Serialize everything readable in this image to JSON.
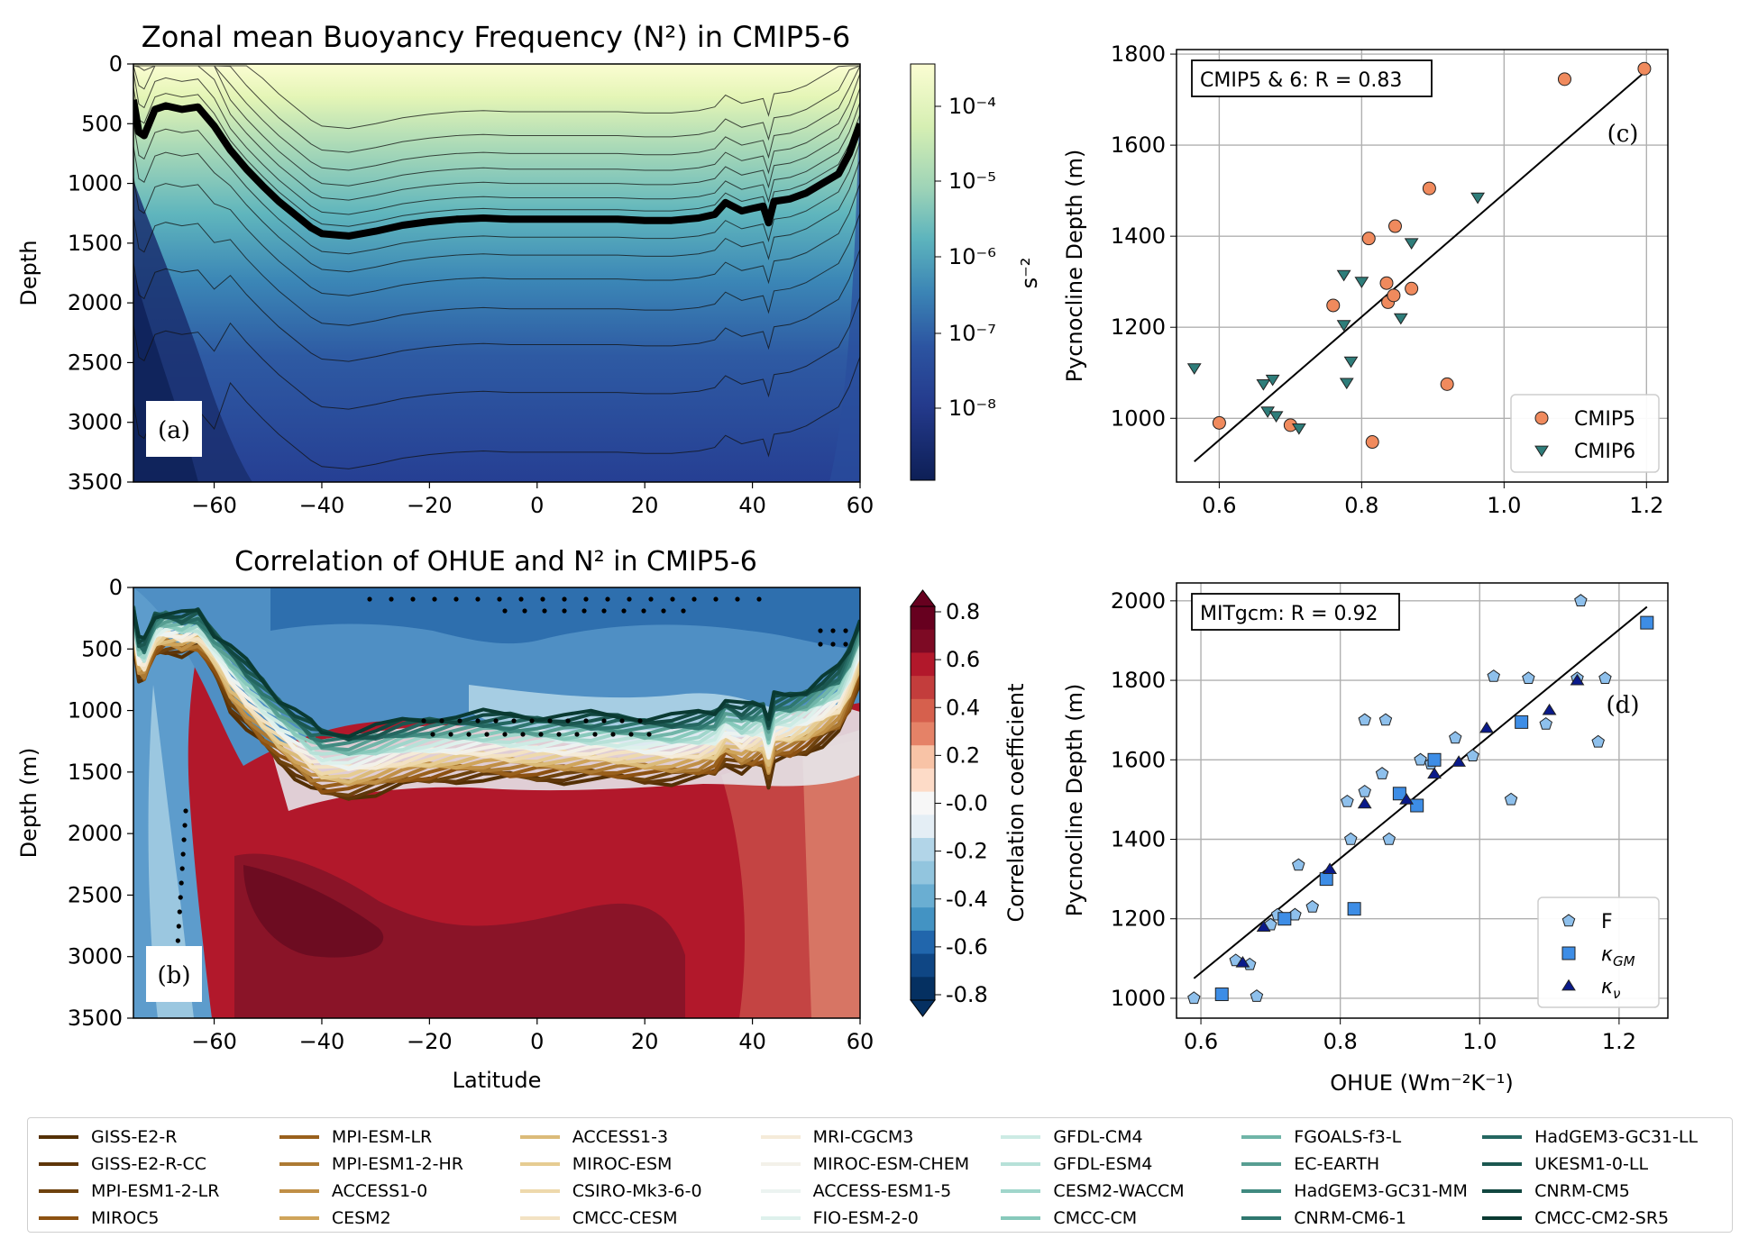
{
  "panel_a": {
    "title": "Zonal mean Buoyancy Frequency (N²) in CMIP5-6",
    "ylabel": "Depth",
    "panel_label": "(a)",
    "colorbar_unit": "s⁻²",
    "colorbar_ticks": [
      "10⁻⁴",
      "10⁻⁵",
      "10⁻⁶",
      "10⁻⁷",
      "10⁻⁸"
    ],
    "colors": [
      "#0d1f56",
      "#243a8c",
      "#2c54a1",
      "#3b84b5",
      "#5db4bd",
      "#9dd3b7",
      "#d6efb3",
      "#fbfdd2"
    ]
  },
  "panel_b": {
    "title": "Correlation of OHUE and N² in CMIP5-6",
    "ylabel": "Depth (m)",
    "xlabel": "Latitude",
    "panel_label": "(b)",
    "colorbar_label": "Correlation coefficient",
    "colorbar_ticks": [
      "0.8",
      "0.6",
      "0.4",
      "0.2",
      "-0.0",
      "-0.2",
      "-0.4",
      "-0.6",
      "-0.8"
    ],
    "colors": [
      "#67001f",
      "#b2182b",
      "#d6604d",
      "#f4a582",
      "#fddbc7",
      "#f7f7f7",
      "#d1e5f0",
      "#92c5de",
      "#4393c3",
      "#2166ac",
      "#053061"
    ]
  },
  "panel_c": {
    "panel_label": "(c)",
    "annotation": "CMIP5 & 6: R = 0.83",
    "ylabel": "Pycnocline Depth (m)"
  },
  "panel_d": {
    "panel_label": "(d)",
    "annotation": "MITgcm: R = 0.92",
    "ylabel": "Pycnocline Depth (m)",
    "xlabel": "OHUE (Wm⁻²K⁻¹)"
  },
  "chart_data": [
    {
      "type": "heatmap",
      "title": "Zonal mean Buoyancy Frequency (N²) in CMIP5-6",
      "ylabel": "Depth",
      "x_ticks": [
        -60,
        -40,
        -20,
        0,
        20,
        40,
        60
      ],
      "y_ticks": [
        0,
        500,
        1000,
        1500,
        2000,
        2500,
        3000,
        3500
      ],
      "xlim": [
        -75,
        60
      ],
      "ylim": [
        3500,
        0
      ],
      "colorbar": {
        "scale": "log",
        "unit": "s⁻²",
        "ticks": [
          "10⁻⁴",
          "10⁻⁵",
          "10⁻⁶",
          "10⁻⁷",
          "10⁻⁸"
        ]
      },
      "pycnocline_line": {
        "lat": [
          -75,
          -74,
          -73,
          -71,
          -69,
          -66,
          -63,
          -60,
          -57,
          -54,
          -51,
          -48,
          -45,
          -42,
          -40,
          -35,
          -30,
          -25,
          -20,
          -15,
          -10,
          -5,
          0,
          5,
          10,
          15,
          20,
          25,
          30,
          33,
          35,
          38,
          40,
          42,
          43,
          44,
          47,
          50,
          53,
          56,
          58,
          60
        ],
        "depth": [
          300,
          570,
          600,
          380,
          350,
          380,
          360,
          520,
          720,
          880,
          1020,
          1150,
          1260,
          1370,
          1420,
          1440,
          1400,
          1350,
          1320,
          1300,
          1290,
          1300,
          1300,
          1300,
          1300,
          1300,
          1310,
          1310,
          1290,
          1260,
          1160,
          1230,
          1210,
          1190,
          1330,
          1150,
          1130,
          1080,
          1000,
          920,
          750,
          500
        ]
      }
    },
    {
      "type": "heatmap",
      "title": "Correlation of OHUE and N² in CMIP5-6",
      "xlabel": "Latitude",
      "ylabel": "Depth (m)",
      "x_ticks": [
        -60,
        -40,
        -20,
        0,
        20,
        40,
        60
      ],
      "y_ticks": [
        0,
        500,
        1000,
        1500,
        2000,
        2500,
        3000,
        3500
      ],
      "xlim": [
        -75,
        60
      ],
      "ylim": [
        3500,
        0
      ],
      "colorbar": {
        "label": "Correlation coefficient",
        "range": [
          -0.8,
          0.8
        ],
        "ticks": [
          0.8,
          0.6,
          0.4,
          0.2,
          -0.0,
          -0.2,
          -0.4,
          -0.6,
          -0.8
        ]
      }
    },
    {
      "type": "scatter",
      "annotation": "CMIP5 & 6: R = 0.83",
      "ylabel": "Pycnocline Depth (m)",
      "xlim": [
        0.54,
        1.23
      ],
      "ylim": [
        860,
        1810
      ],
      "x_ticks": [
        0.6,
        0.8,
        1.0,
        1.2
      ],
      "y_ticks": [
        1000,
        1200,
        1400,
        1600,
        1800
      ],
      "legend": "lower right",
      "series": [
        {
          "name": "CMIP5",
          "marker": "circle",
          "color": "#f08a5d",
          "x": [
            0.6,
            0.7,
            0.76,
            0.81,
            0.815,
            0.835,
            0.837,
            0.845,
            0.847,
            0.87,
            0.895,
            0.92,
            1.085,
            1.197
          ],
          "y": [
            990,
            985,
            1248,
            1395,
            948,
            1297,
            1255,
            1270,
            1422,
            1285,
            1505,
            1075,
            1745,
            1768
          ]
        },
        {
          "name": "CMIP6",
          "marker": "triangle-down",
          "color": "#2e7d7a",
          "x": [
            0.565,
            0.662,
            0.668,
            0.675,
            0.68,
            0.712,
            0.775,
            0.775,
            0.779,
            0.785,
            0.8,
            0.855,
            0.87,
            0.963
          ],
          "y": [
            1110,
            1075,
            1015,
            1085,
            1005,
            978,
            1205,
            1315,
            1078,
            1125,
            1300,
            1220,
            1385,
            1485
          ]
        }
      ],
      "fit_line": {
        "x": [
          0.565,
          1.197
        ],
        "y": [
          905,
          1760
        ]
      }
    },
    {
      "type": "scatter",
      "annotation": "MITgcm: R = 0.92",
      "xlabel": "OHUE (Wm⁻²K⁻¹)",
      "ylabel": "Pycnocline Depth (m)",
      "xlim": [
        0.565,
        1.27
      ],
      "ylim": [
        950,
        2045
      ],
      "x_ticks": [
        0.6,
        0.8,
        1.0,
        1.2
      ],
      "y_ticks": [
        1000,
        1200,
        1400,
        1600,
        1800,
        2000
      ],
      "legend": "lower right",
      "series": [
        {
          "name": "F",
          "marker": "pentagon",
          "color": "#8ec0ec",
          "x": [
            0.59,
            0.65,
            0.67,
            0.68,
            0.7,
            0.71,
            0.735,
            0.74,
            0.76,
            0.81,
            0.815,
            0.835,
            0.835,
            0.86,
            0.865,
            0.87,
            0.915,
            0.93,
            0.965,
            0.99,
            1.02,
            1.045,
            1.07,
            1.095,
            1.14,
            1.18,
            1.17,
            1.145
          ],
          "y": [
            1000,
            1095,
            1085,
            1005,
            1185,
            1210,
            1210,
            1335,
            1230,
            1495,
            1400,
            1520,
            1700,
            1565,
            1700,
            1400,
            1600,
            1590,
            1655,
            1610,
            1810,
            1500,
            1805,
            1690,
            1805,
            1805,
            1645,
            2000
          ]
        },
        {
          "name": "κ_GM",
          "marker": "square",
          "color": "#3d8de6",
          "x": [
            0.63,
            0.72,
            0.78,
            0.82,
            0.885,
            0.935,
            0.91,
            1.06,
            1.24
          ],
          "y": [
            1010,
            1200,
            1300,
            1225,
            1515,
            1600,
            1485,
            1695,
            1945
          ]
        },
        {
          "name": "κ_ν",
          "marker": "triangle-up",
          "color": "#0a1a8a",
          "x": [
            0.66,
            0.69,
            0.785,
            0.835,
            0.895,
            0.935,
            0.97,
            1.01,
            1.1,
            1.14
          ],
          "y": [
            1090,
            1180,
            1325,
            1490,
            1500,
            1565,
            1595,
            1680,
            1725,
            1800
          ]
        }
      ],
      "fit_line": {
        "x": [
          0.59,
          1.24
        ],
        "y": [
          1050,
          1985
        ]
      }
    }
  ],
  "legend_models": [
    {
      "name": "GISS-E2-R",
      "color": "#543005"
    },
    {
      "name": "GISS-E2-R-CC",
      "color": "#5f3609"
    },
    {
      "name": "MPI-ESM1-2-LR",
      "color": "#6e420d"
    },
    {
      "name": "MIROC5",
      "color": "#8c5112"
    },
    {
      "name": "MPI-ESM-LR",
      "color": "#99601c"
    },
    {
      "name": "MPI-ESM1-2-HR",
      "color": "#ad7a33"
    },
    {
      "name": "ACCESS1-0",
      "color": "#c08f46"
    },
    {
      "name": "CESM2",
      "color": "#cfa45a"
    },
    {
      "name": "ACCESS1-3",
      "color": "#dbbb79"
    },
    {
      "name": "MIROC-ESM",
      "color": "#e6cc92"
    },
    {
      "name": "CSIRO-Mk3-6-0",
      "color": "#eed9ac"
    },
    {
      "name": "CMCC-CESM",
      "color": "#f3e2c3"
    },
    {
      "name": "MRI-CGCM3",
      "color": "#f5ebd9"
    },
    {
      "name": "MIROC-ESM-CHEM",
      "color": "#f3f1e9"
    },
    {
      "name": "ACCESS-ESM1-5",
      "color": "#ecf3f1"
    },
    {
      "name": "FIO-ESM-2-0",
      "color": "#def1ec"
    },
    {
      "name": "GFDL-CM4",
      "color": "#cdebe4"
    },
    {
      "name": "GFDL-ESM4",
      "color": "#b7e1d8"
    },
    {
      "name": "CESM2-WACCM",
      "color": "#a0d6cb"
    },
    {
      "name": "CMCC-CM",
      "color": "#87c9bb"
    },
    {
      "name": "FGOALS-f3-L",
      "color": "#70b5a8"
    },
    {
      "name": "EC-EARTH",
      "color": "#579e92"
    },
    {
      "name": "HadGEM3-GC31-MM",
      "color": "#408a80"
    },
    {
      "name": "CNRM-CM6-1",
      "color": "#2f776f"
    },
    {
      "name": "HadGEM3-GC31-LL",
      "color": "#246761"
    },
    {
      "name": "UKESM1-0-LL",
      "color": "#1b5750"
    },
    {
      "name": "CNRM-CM5",
      "color": "#114740"
    },
    {
      "name": "CMCC-CM2-SR5",
      "color": "#0a3a32"
    }
  ]
}
